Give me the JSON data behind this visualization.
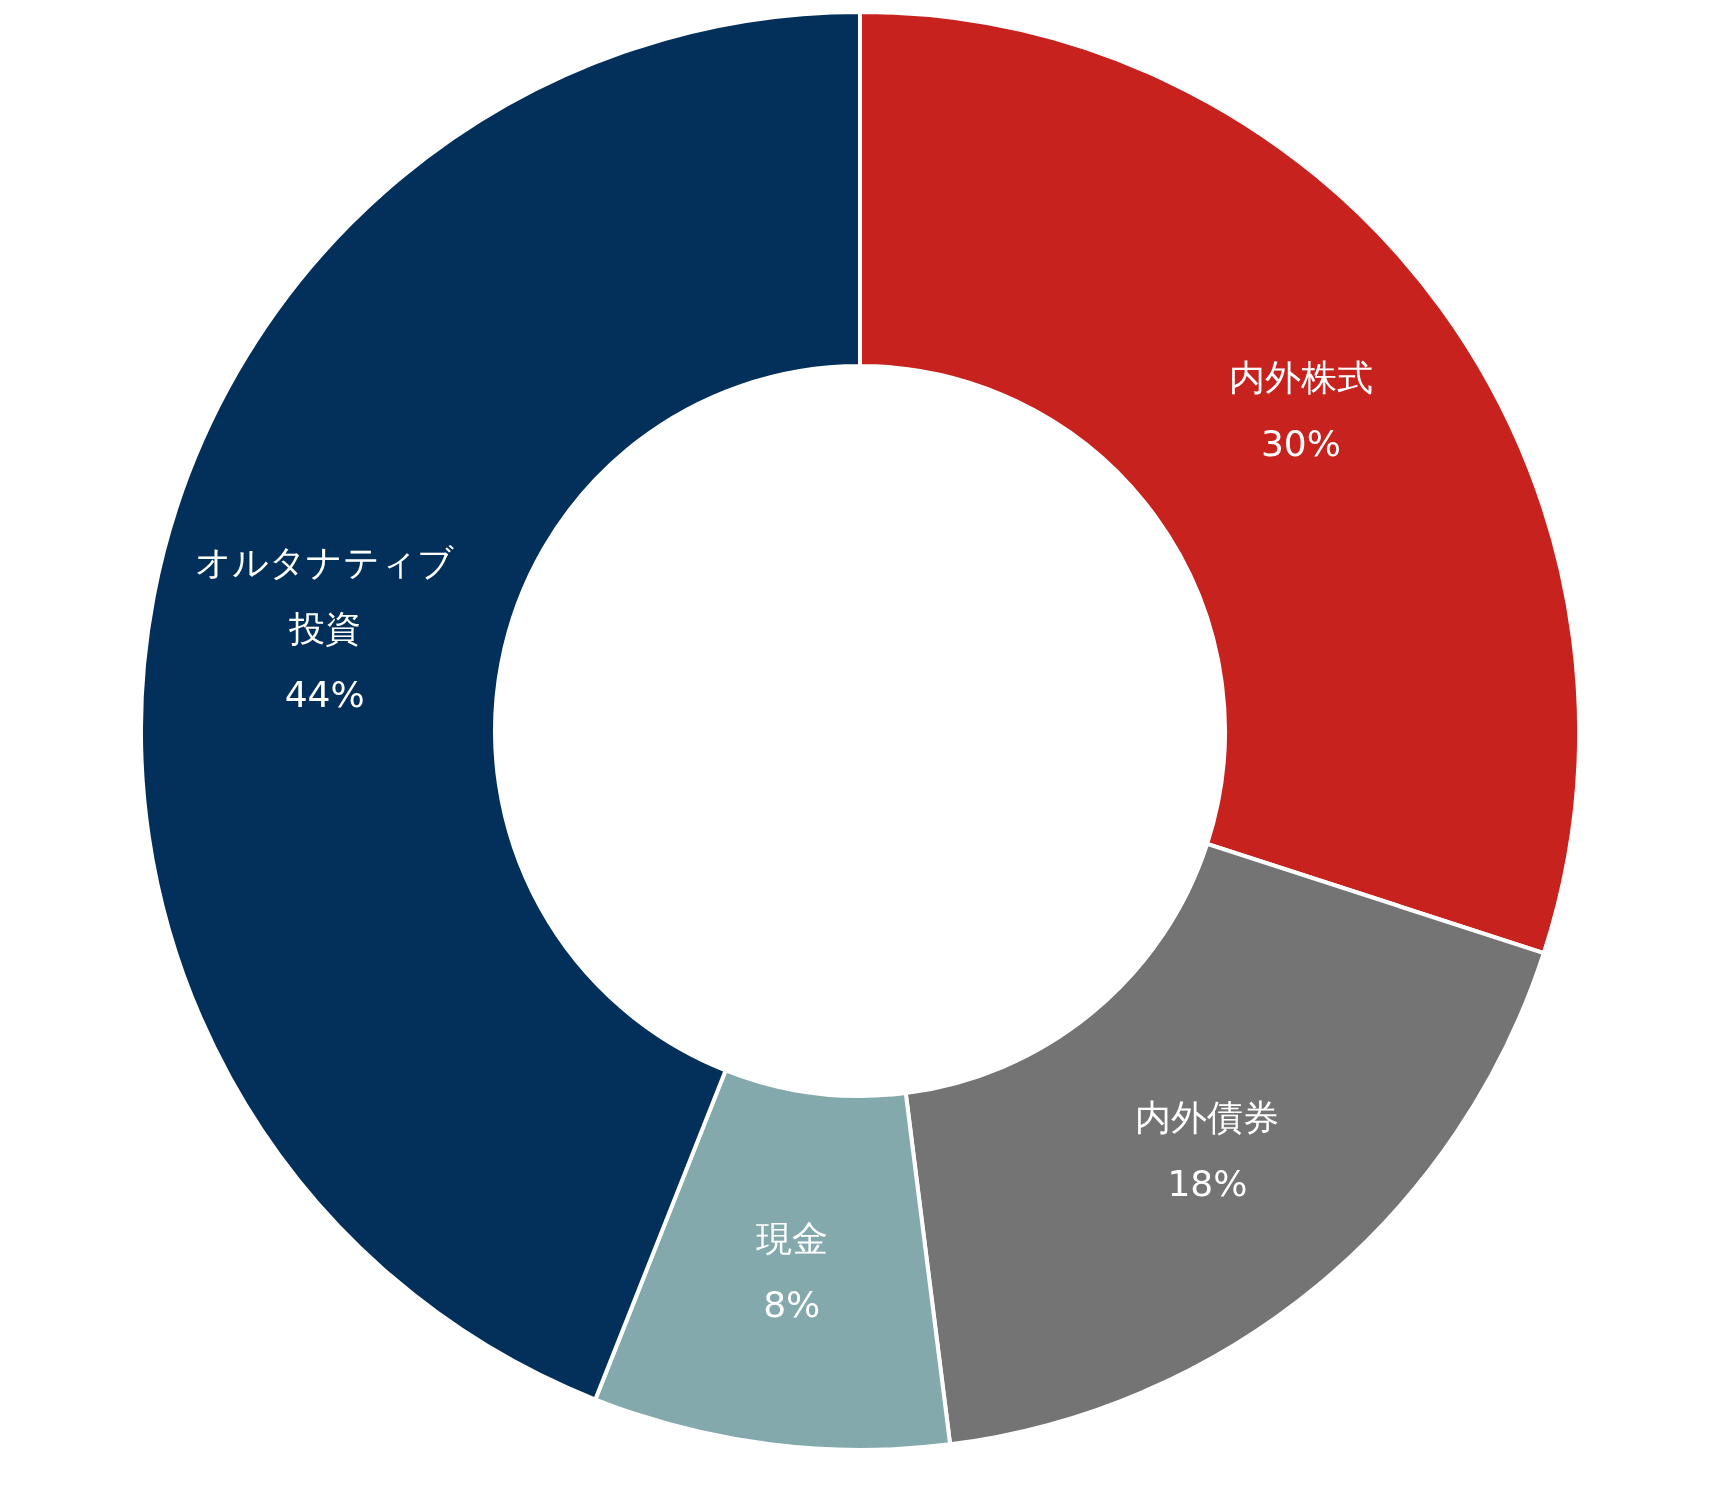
{
  "chart_data": {
    "type": "donut",
    "categories": [
      "内外株式",
      "内外債券",
      "現金",
      "オルタナティブ投資"
    ],
    "values": [
      30,
      18,
      8,
      44
    ],
    "value_labels": [
      "30%",
      "18%",
      "8%",
      "44%"
    ],
    "colors": [
      "#c8221f",
      "#747474",
      "#83a9ad",
      "#03305a"
    ],
    "legend": false
  }
}
